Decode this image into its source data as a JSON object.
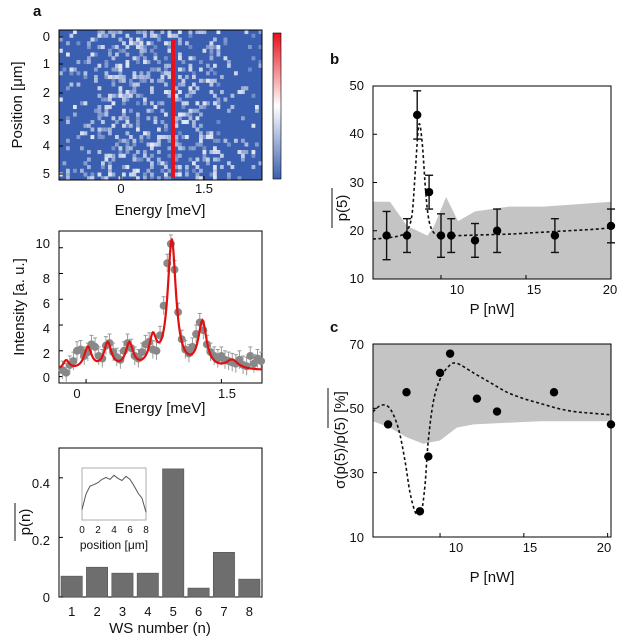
{
  "panel_labels": {
    "a": "a",
    "b": "b",
    "c": "c"
  },
  "chart_data": [
    {
      "id": "heatmap",
      "type": "heatmap",
      "panel": "a",
      "xlabel": "Energy [meV]",
      "ylabel": "Position [μm]",
      "xticks": [
        "0",
        "1.5"
      ],
      "yticks": [
        "0",
        "1",
        "2",
        "3",
        "4",
        "5"
      ],
      "colormap": [
        "#3b5fb0",
        "#ffffff",
        "#e8101a"
      ],
      "peak_energy": 0.95,
      "peak_positions": [
        0,
        5
      ]
    },
    {
      "id": "spectrum",
      "type": "scatter",
      "panel": "a",
      "xlabel": "Energy [meV]",
      "ylabel": "Intensity [a. u.]",
      "xticks": [
        "0",
        "1.5"
      ],
      "yticks": [
        "0",
        "2",
        "4",
        "6",
        "8",
        "10"
      ],
      "xlim": [
        -0.3,
        1.95
      ],
      "ylim": [
        -0.5,
        11.3
      ],
      "points_color": "#888888",
      "fit_color": "#e01010",
      "x": [
        -0.26,
        -0.22,
        -0.18,
        -0.14,
        -0.1,
        -0.06,
        -0.02,
        0.02,
        0.06,
        0.1,
        0.14,
        0.18,
        0.22,
        0.26,
        0.3,
        0.34,
        0.38,
        0.42,
        0.46,
        0.5,
        0.54,
        0.58,
        0.62,
        0.66,
        0.7,
        0.74,
        0.78,
        0.82,
        0.86,
        0.9,
        0.94,
        0.98,
        1.02,
        1.06,
        1.1,
        1.14,
        1.18,
        1.22,
        1.26,
        1.3,
        1.34,
        1.38,
        1.42,
        1.46,
        1.5,
        1.54,
        1.58,
        1.62,
        1.66,
        1.7,
        1.74,
        1.78,
        1.82,
        1.86,
        1.9,
        1.94
      ],
      "y": [
        0.5,
        0.3,
        0.9,
        1.2,
        2.0,
        2.1,
        1.6,
        1.9,
        2.5,
        2.3,
        1.6,
        1.4,
        2.4,
        2.6,
        1.9,
        1.5,
        1.3,
        2.0,
        2.6,
        2.2,
        1.6,
        1.4,
        1.9,
        2.5,
        2.7,
        2.1,
        2.0,
        3.2,
        5.5,
        8.8,
        10.3,
        8.3,
        5.0,
        2.9,
        2.1,
        1.8,
        2.3,
        3.3,
        4.2,
        3.6,
        2.5,
        1.9,
        1.6,
        1.4,
        1.6,
        1.3,
        1.2,
        1.1,
        1.0,
        1.3,
        0.9,
        0.8,
        1.6,
        1.0,
        1.4,
        1.2
      ],
      "yerr": 0.7,
      "fit_peaks": [
        {
          "center": -0.22,
          "amp": 0.7,
          "width": 0.04
        },
        {
          "center": 0.02,
          "amp": 1.7,
          "width": 0.05
        },
        {
          "center": 0.24,
          "amp": 2.0,
          "width": 0.05
        },
        {
          "center": 0.48,
          "amp": 1.9,
          "width": 0.05
        },
        {
          "center": 0.74,
          "amp": 2.2,
          "width": 0.05
        },
        {
          "center": 0.95,
          "amp": 10.0,
          "width": 0.055
        },
        {
          "center": 1.29,
          "amp": 3.6,
          "width": 0.055
        },
        {
          "center": 1.62,
          "amp": 0.7,
          "width": 0.08
        }
      ],
      "fit_baseline": 0.45
    },
    {
      "id": "ws-bars",
      "type": "bar",
      "panel": "a",
      "xlabel": "WS number (n)",
      "ylabel": "p(n)",
      "categories": [
        "1",
        "2",
        "3",
        "4",
        "5",
        "6",
        "7",
        "8"
      ],
      "values": [
        0.07,
        0.1,
        0.08,
        0.08,
        0.43,
        0.03,
        0.15,
        0.06
      ],
      "ylim": [
        0,
        0.5
      ],
      "yticks": [
        "0",
        "0.2",
        "0.4"
      ],
      "bar_color": "#6e6e6e",
      "inset": {
        "xlabel": "position [μm]",
        "xticks": [
          "0",
          "2",
          "4",
          "6",
          "8"
        ],
        "xlim": [
          0,
          8
        ],
        "x": [
          0,
          0.5,
          1,
          1.5,
          2,
          2.5,
          3,
          3.5,
          4,
          4.5,
          5,
          5.5,
          6,
          6.5,
          7,
          7.5,
          8
        ],
        "y": [
          0.2,
          0.5,
          0.65,
          0.68,
          0.72,
          0.78,
          0.82,
          0.78,
          0.86,
          0.8,
          0.76,
          0.84,
          0.78,
          0.66,
          0.52,
          0.42,
          0.15
        ]
      }
    },
    {
      "id": "p5-vs-power",
      "type": "scatter",
      "panel": "b",
      "xlabel": "P [nW]",
      "ylabel": "p(5)",
      "xlim": [
        6,
        20
      ],
      "ylim": [
        10,
        50
      ],
      "xticks": [
        10,
        15,
        20
      ],
      "yticks": [
        10,
        20,
        30,
        40,
        50
      ],
      "x": [
        6.8,
        8.0,
        8.6,
        9.3,
        10.0,
        10.6,
        12.0,
        13.3,
        16.7,
        20.0
      ],
      "y": [
        19.0,
        19.0,
        44.0,
        28.0,
        19.0,
        19.0,
        18.0,
        20.0,
        19.0,
        21.0
      ],
      "yerr": [
        5.0,
        3.5,
        5.0,
        3.5,
        4.5,
        3.5,
        3.5,
        4.5,
        3.5,
        3.5
      ],
      "fit": {
        "x": [
          6.0,
          6.8,
          7.6,
          8.0,
          8.3,
          8.5,
          8.7,
          8.9,
          9.1,
          9.3,
          9.6,
          10.0,
          10.5,
          11.0,
          12.0,
          13.0,
          14.0,
          15.0,
          16.0,
          17.0,
          18.0,
          19.0,
          20.0
        ],
        "y": [
          18.3,
          18.5,
          19.0,
          20.0,
          23.5,
          33.0,
          42.0,
          38.0,
          28.0,
          22.0,
          19.5,
          19.0,
          19.0,
          19.0,
          19.1,
          19.2,
          19.3,
          19.5,
          19.7,
          19.9,
          20.1,
          20.3,
          20.6
        ]
      },
      "band_color": "#c4c4c4",
      "band": {
        "x": [
          6.0,
          7.0,
          8.0,
          8.6,
          9.2,
          9.6,
          10.3,
          11.0,
          12.0,
          14.0,
          16.0,
          18.0,
          20.0
        ],
        "upper": [
          26.0,
          26.0,
          21.0,
          20.0,
          19.0,
          21.0,
          27.0,
          22.0,
          24.0,
          25.0,
          25.0,
          25.5,
          26.0
        ],
        "lower": [
          10.0,
          10.0,
          10.0,
          10.0,
          10.0,
          10.0,
          10.0,
          10.0,
          10.0,
          10.0,
          10.0,
          10.0,
          10.0
        ]
      }
    },
    {
      "id": "sigma-vs-power",
      "type": "scatter",
      "panel": "c",
      "xlabel": "P [nW]",
      "ylabel": "σ(p(5)/p(5)  [%]",
      "xlim": [
        6,
        20.2
      ],
      "ylim": [
        10,
        70
      ],
      "xticks": [
        10,
        15,
        20
      ],
      "yticks": [
        10,
        30,
        50,
        70
      ],
      "x": [
        6.9,
        8.0,
        8.8,
        9.3,
        10.0,
        10.6,
        12.2,
        13.4,
        16.8,
        20.2
      ],
      "y": [
        45.0,
        55.0,
        18.0,
        35.0,
        61.0,
        67.0,
        53.0,
        49.0,
        55.0,
        45.0
      ],
      "fit": {
        "x": [
          6.0,
          6.5,
          7.0,
          7.5,
          7.9,
          8.2,
          8.5,
          8.7,
          8.9,
          9.1,
          9.3,
          9.6,
          10.0,
          10.5,
          11.0,
          12.0,
          13.0,
          14.0,
          15.0,
          16.0,
          17.0,
          18.0,
          19.0,
          20.2
        ],
        "y": [
          49.0,
          51.0,
          50.0,
          44.0,
          34.0,
          24.0,
          18.0,
          17.0,
          18.0,
          26.0,
          40.0,
          52.0,
          59.0,
          63.0,
          64.0,
          61.0,
          58.0,
          55.0,
          53.0,
          51.5,
          50.0,
          49.0,
          48.5,
          48.0
        ]
      },
      "band_color": "#c4c4c4",
      "band": {
        "x": [
          6.0,
          20.2
        ],
        "upper": [
          70.0,
          70.0
        ],
        "lower": [
          45.0,
          45.0
        ],
        "lower_curve": {
          "x": [
            6.0,
            7.0,
            8.0,
            9.0,
            10.0,
            11.0,
            12.0,
            14.0,
            16.0,
            18.0,
            20.2
          ],
          "y": [
            46.0,
            44.0,
            41.0,
            39.0,
            40.0,
            44.0,
            45.0,
            45.5,
            46.0,
            46.0,
            46.0
          ]
        }
      }
    }
  ]
}
